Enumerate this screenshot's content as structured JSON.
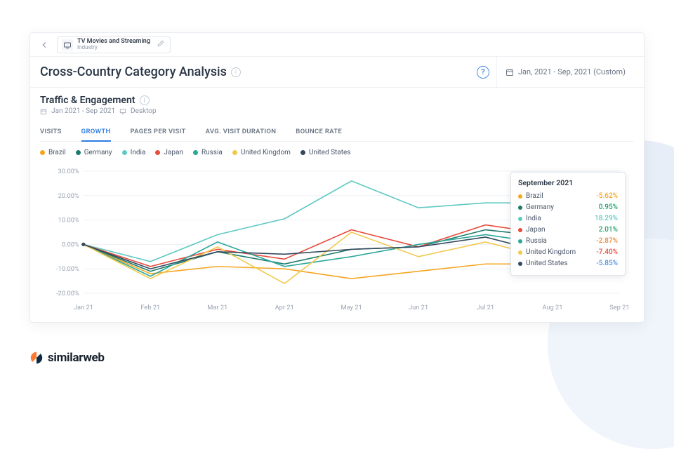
{
  "topbar": {
    "category_title": "TV Movies and Streaming",
    "category_sub": "Industry"
  },
  "titlebar": {
    "page_title": "Cross-Country Category Analysis",
    "date_range": "Jan, 2021 - Sep, 2021 (Custom)"
  },
  "section": {
    "title": "Traffic & Engagement",
    "date_meta": "Jan 2021 - Sep 2021",
    "device_meta": "Desktop"
  },
  "tabs": [
    "VISITS",
    "GROWTH",
    "PAGES PER VISIT",
    "AVG. VISIT DURATION",
    "BOUNCE RATE"
  ],
  "active_tab": 1,
  "chart": {
    "type": "line",
    "x_labels": [
      "Jan 21",
      "Feb 21",
      "Mar 21",
      "Apr 21",
      "May 21",
      "Jun 21",
      "Jul 21",
      "Aug 21",
      "Sep 21"
    ],
    "y_ticks": [
      -20,
      -10,
      0,
      10,
      20,
      30
    ],
    "y_tick_labels": [
      "-20.00%",
      "-10.00%",
      "0.00%",
      "10.00%",
      "20.00%",
      "30.00%"
    ],
    "ylim": [
      -22,
      32
    ],
    "grid_color": "#eef1f5",
    "background_color": "#ffffff",
    "axis_label_color": "#9aa3b2",
    "series": [
      {
        "name": "Brazil",
        "color": "#f5a623",
        "values": [
          0,
          -12,
          -9,
          -10,
          -14,
          -11,
          -8,
          -8,
          -5.62
        ]
      },
      {
        "name": "Germany",
        "color": "#1d7a6b",
        "values": [
          0,
          -11,
          -3,
          -8,
          -2,
          -1,
          6,
          3,
          0.95
        ]
      },
      {
        "name": "India",
        "color": "#5fc9c2",
        "values": [
          0,
          -7,
          4,
          10.5,
          26,
          15,
          17,
          17,
          18.29
        ]
      },
      {
        "name": "Japan",
        "color": "#e74c3c",
        "values": [
          0,
          -9,
          -2,
          -6,
          6,
          -1,
          8,
          4,
          2.01
        ]
      },
      {
        "name": "Russia",
        "color": "#2aa89a",
        "values": [
          0,
          -13,
          1,
          -9,
          -5,
          0,
          4,
          0,
          -2.87
        ]
      },
      {
        "name": "United Kingdom",
        "color": "#f2c94c",
        "values": [
          0,
          -14,
          -1,
          -16,
          5,
          -5,
          1,
          -6,
          -7.4
        ]
      },
      {
        "name": "United States",
        "color": "#34495e",
        "values": [
          0,
          -10,
          -3,
          -4,
          -2,
          -1,
          3,
          -4,
          -5.85
        ]
      }
    ]
  },
  "tooltip": {
    "title": "September 2021",
    "rows": [
      {
        "label": "Brazil",
        "color": "#f5a623",
        "value": "-5.62%",
        "value_color": "#f5a623"
      },
      {
        "label": "Germany",
        "color": "#1d7a6b",
        "value": "0.95%",
        "value_color": "#22a06b"
      },
      {
        "label": "India",
        "color": "#5fc9c2",
        "value": "18.29%",
        "value_color": "#5fc9c2"
      },
      {
        "label": "Japan",
        "color": "#e74c3c",
        "value": "2.01%",
        "value_color": "#22a06b"
      },
      {
        "label": "Russia",
        "color": "#2aa89a",
        "value": "-2.87%",
        "value_color": "#e98a3a"
      },
      {
        "label": "United Kingdom",
        "color": "#f2c94c",
        "value": "-7.40%",
        "value_color": "#e74c3c"
      },
      {
        "label": "United States",
        "color": "#34495e",
        "value": "-5.85%",
        "value_color": "#4a90e2"
      }
    ]
  },
  "logo": {
    "text": "similarweb",
    "mark_color1": "#ff7a2f",
    "mark_color2": "#102a43"
  }
}
